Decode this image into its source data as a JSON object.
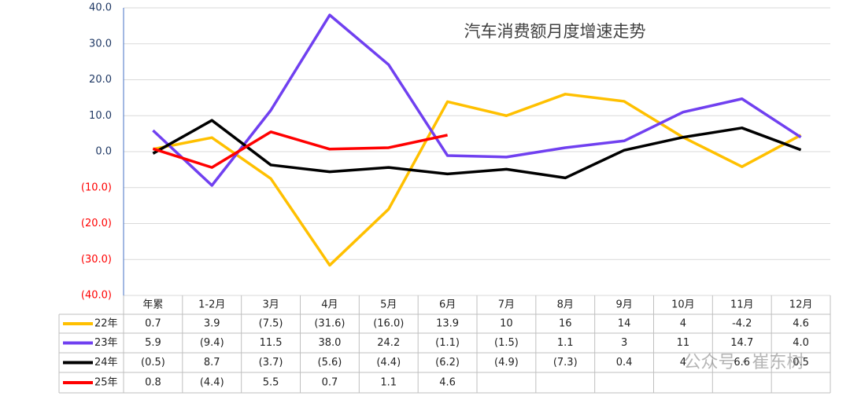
{
  "chart_data": {
    "type": "line",
    "title": "汽车消费额月度增速走势",
    "watermark": "公众号 · 崔东树",
    "categories": [
      "年累",
      "1-2月",
      "3月",
      "4月",
      "5月",
      "6月",
      "7月",
      "8月",
      "9月",
      "10月",
      "11月",
      "12月"
    ],
    "series": [
      {
        "name": "22年",
        "color": "#ffc000",
        "values": [
          0.7,
          3.9,
          -7.5,
          -31.6,
          -16.0,
          13.9,
          10,
          16,
          14,
          4,
          -4.2,
          4.6
        ],
        "value_labels": [
          "0.7",
          "3.9",
          "(7.5)",
          "(31.6)",
          "(16.0)",
          "13.9",
          "10",
          "16",
          "14",
          "4",
          "-4.2",
          "4.6"
        ]
      },
      {
        "name": "23年",
        "color": "#7040f0",
        "values": [
          5.9,
          -9.4,
          11.5,
          38.0,
          24.2,
          -1.1,
          -1.5,
          1.1,
          3,
          11,
          14.7,
          4.0
        ],
        "value_labels": [
          "5.9",
          "(9.4)",
          "11.5",
          "38.0",
          "24.2",
          "(1.1)",
          "(1.5)",
          "1.1",
          "3",
          "11",
          "14.7",
          "4.0"
        ]
      },
      {
        "name": "24年",
        "color": "#000000",
        "values": [
          -0.5,
          8.7,
          -3.7,
          -5.6,
          -4.4,
          -6.2,
          -4.9,
          -7.3,
          0.4,
          4,
          6.6,
          0.5
        ],
        "value_labels": [
          "(0.5)",
          "8.7",
          "(3.7)",
          "(5.6)",
          "(4.4)",
          "(6.2)",
          "(4.9)",
          "(7.3)",
          "0.4",
          "4",
          "6.6",
          "0.5"
        ]
      },
      {
        "name": "25年",
        "color": "#ff0000",
        "values": [
          0.8,
          -4.4,
          5.5,
          0.7,
          1.1,
          4.6,
          null,
          null,
          null,
          null,
          null,
          null
        ],
        "value_labels": [
          "0.8",
          "(4.4)",
          "5.5",
          "0.7",
          "1.1",
          "4.6",
          null,
          null,
          null,
          null,
          null,
          null
        ]
      }
    ],
    "ylim": [
      -40,
      40
    ],
    "yticks": [
      {
        "value": 40,
        "label": "40.0"
      },
      {
        "value": 30,
        "label": "30.0"
      },
      {
        "value": 20,
        "label": "20.0"
      },
      {
        "value": 10,
        "label": "10.0"
      },
      {
        "value": 0,
        "label": "0.0"
      },
      {
        "value": -10,
        "label": "(10.0)"
      },
      {
        "value": -20,
        "label": "(20.0)"
      },
      {
        "value": -30,
        "label": "(30.0)"
      },
      {
        "value": -40,
        "label": "(40.0)"
      }
    ],
    "grid": true
  }
}
